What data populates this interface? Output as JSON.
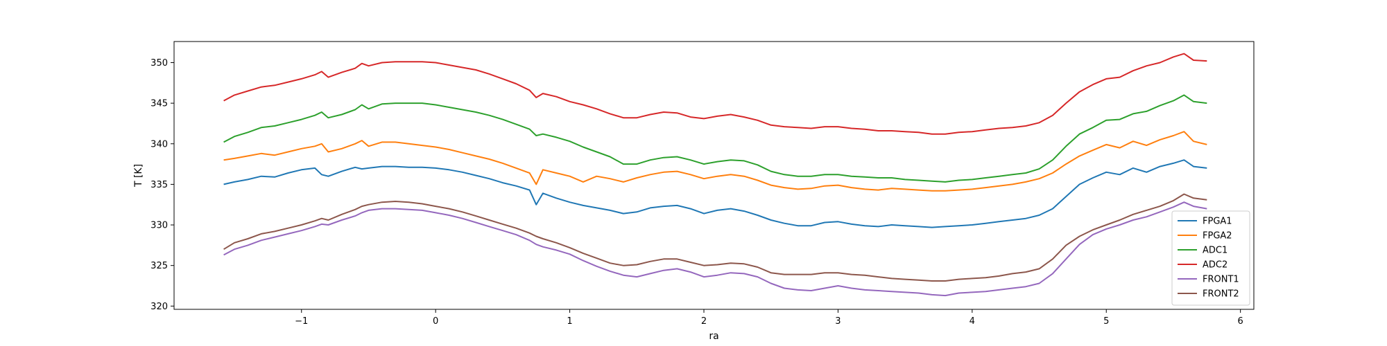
{
  "chart_data": {
    "type": "line",
    "xlabel": "ra",
    "ylabel": "T [K]",
    "xlim": [
      -1.95,
      6.1
    ],
    "ylim": [
      319.6,
      352.6
    ],
    "xticks": [
      -1,
      0,
      1,
      2,
      3,
      4,
      5,
      6
    ],
    "xtick_labels": [
      "−1",
      "0",
      "1",
      "2",
      "3",
      "4",
      "5",
      "6"
    ],
    "yticks": [
      320,
      325,
      330,
      335,
      340,
      345,
      350
    ],
    "ytick_labels": [
      "320",
      "325",
      "330",
      "335",
      "340",
      "345",
      "350"
    ],
    "grid": false,
    "legend_position": "lower-right",
    "x": [
      -1.58,
      -1.5,
      -1.4,
      -1.3,
      -1.2,
      -1.1,
      -1.0,
      -0.9,
      -0.85,
      -0.8,
      -0.7,
      -0.6,
      -0.55,
      -0.5,
      -0.4,
      -0.3,
      -0.2,
      -0.1,
      0.0,
      0.1,
      0.2,
      0.3,
      0.4,
      0.5,
      0.6,
      0.7,
      0.75,
      0.8,
      0.9,
      1.0,
      1.1,
      1.2,
      1.3,
      1.4,
      1.5,
      1.6,
      1.7,
      1.8,
      1.9,
      2.0,
      2.1,
      2.2,
      2.3,
      2.4,
      2.5,
      2.6,
      2.7,
      2.8,
      2.9,
      3.0,
      3.1,
      3.2,
      3.3,
      3.4,
      3.5,
      3.6,
      3.7,
      3.8,
      3.9,
      4.0,
      4.1,
      4.2,
      4.3,
      4.4,
      4.5,
      4.6,
      4.7,
      4.8,
      4.9,
      5.0,
      5.1,
      5.2,
      5.3,
      5.4,
      5.5,
      5.58,
      5.65,
      5.75
    ],
    "series": [
      {
        "name": "FPGA1",
        "color": "#1f77b4",
        "values": [
          335.0,
          335.3,
          335.6,
          336.0,
          335.9,
          336.4,
          336.8,
          337.0,
          336.2,
          336.0,
          336.6,
          337.1,
          336.9,
          337.0,
          337.2,
          337.2,
          337.1,
          337.1,
          337.0,
          336.8,
          336.5,
          336.1,
          335.7,
          335.2,
          334.8,
          334.3,
          332.5,
          333.9,
          333.3,
          332.8,
          332.4,
          332.1,
          331.8,
          331.4,
          331.6,
          332.1,
          332.3,
          332.4,
          332.0,
          331.4,
          331.8,
          332.0,
          331.7,
          331.2,
          330.6,
          330.2,
          329.9,
          329.9,
          330.3,
          330.4,
          330.1,
          329.9,
          329.8,
          330.0,
          329.9,
          329.8,
          329.7,
          329.8,
          329.9,
          330.0,
          330.2,
          330.4,
          330.6,
          330.8,
          331.2,
          332.0,
          333.5,
          335.0,
          335.8,
          336.5,
          336.2,
          337.0,
          336.5,
          337.2,
          337.6,
          338.0,
          337.2,
          337.0
        ]
      },
      {
        "name": "FPGA2",
        "color": "#ff7f0e",
        "values": [
          338.0,
          338.2,
          338.5,
          338.8,
          338.6,
          339.0,
          339.4,
          339.7,
          340.0,
          339.0,
          339.4,
          340.0,
          340.4,
          339.7,
          340.2,
          340.2,
          340.0,
          339.8,
          339.6,
          339.3,
          338.9,
          338.5,
          338.1,
          337.6,
          337.0,
          336.4,
          335.0,
          336.8,
          336.4,
          336.0,
          335.3,
          336.0,
          335.7,
          335.3,
          335.8,
          336.2,
          336.5,
          336.6,
          336.2,
          335.7,
          336.0,
          336.2,
          336.0,
          335.5,
          334.9,
          334.6,
          334.4,
          334.5,
          334.8,
          334.9,
          334.6,
          334.4,
          334.3,
          334.5,
          334.4,
          334.3,
          334.2,
          334.2,
          334.3,
          334.4,
          334.6,
          334.8,
          335.0,
          335.3,
          335.7,
          336.4,
          337.5,
          338.5,
          339.2,
          339.9,
          339.5,
          340.3,
          339.8,
          340.5,
          341.0,
          341.5,
          340.3,
          339.9
        ]
      },
      {
        "name": "ADC1",
        "color": "#2ca02c",
        "values": [
          340.2,
          340.9,
          341.4,
          342.0,
          342.2,
          342.6,
          343.0,
          343.5,
          343.9,
          343.2,
          343.6,
          344.2,
          344.8,
          344.3,
          344.9,
          345.0,
          345.0,
          345.0,
          344.8,
          344.5,
          344.2,
          343.9,
          343.5,
          343.0,
          342.4,
          341.8,
          341.0,
          341.2,
          340.8,
          340.3,
          339.6,
          339.0,
          338.4,
          337.5,
          337.5,
          338.0,
          338.3,
          338.4,
          338.0,
          337.5,
          337.8,
          338.0,
          337.9,
          337.4,
          336.6,
          336.2,
          336.0,
          336.0,
          336.2,
          336.2,
          336.0,
          335.9,
          335.8,
          335.8,
          335.6,
          335.5,
          335.4,
          335.3,
          335.5,
          335.6,
          335.8,
          336.0,
          336.2,
          336.4,
          336.9,
          338.0,
          339.7,
          341.2,
          342.0,
          342.9,
          343.0,
          343.7,
          344.0,
          344.7,
          345.3,
          346.0,
          345.2,
          345.0
        ]
      },
      {
        "name": "ADC2",
        "color": "#d62728",
        "values": [
          345.3,
          346.0,
          346.5,
          347.0,
          347.2,
          347.6,
          348.0,
          348.5,
          348.9,
          348.2,
          348.8,
          349.3,
          349.9,
          349.6,
          350.0,
          350.1,
          350.1,
          350.1,
          350.0,
          349.7,
          349.4,
          349.1,
          348.6,
          348.0,
          347.4,
          346.6,
          345.7,
          346.2,
          345.8,
          345.2,
          344.8,
          344.3,
          343.7,
          343.2,
          343.2,
          343.6,
          343.9,
          343.8,
          343.3,
          343.1,
          343.4,
          343.6,
          343.3,
          342.9,
          342.3,
          342.1,
          342.0,
          341.9,
          342.1,
          342.1,
          341.9,
          341.8,
          341.6,
          341.6,
          341.5,
          341.4,
          341.2,
          341.2,
          341.4,
          341.5,
          341.7,
          341.9,
          342.0,
          342.2,
          342.6,
          343.5,
          345.0,
          346.4,
          347.3,
          348.0,
          348.2,
          349.0,
          349.6,
          350.0,
          350.7,
          351.1,
          350.3,
          350.2
        ]
      },
      {
        "name": "FRONT1",
        "color": "#9467bd",
        "values": [
          326.3,
          327.0,
          327.5,
          328.1,
          328.5,
          328.9,
          329.3,
          329.8,
          330.1,
          330.0,
          330.6,
          331.1,
          331.5,
          331.8,
          332.0,
          332.0,
          331.9,
          331.8,
          331.5,
          331.2,
          330.8,
          330.3,
          329.8,
          329.3,
          328.8,
          328.1,
          327.6,
          327.3,
          326.9,
          326.4,
          325.6,
          324.9,
          324.3,
          323.8,
          323.6,
          324.0,
          324.4,
          324.6,
          324.2,
          323.6,
          323.8,
          324.1,
          324.0,
          323.6,
          322.8,
          322.2,
          322.0,
          321.9,
          322.2,
          322.5,
          322.2,
          322.0,
          321.9,
          321.8,
          321.7,
          321.6,
          321.4,
          321.3,
          321.6,
          321.7,
          321.8,
          322.0,
          322.2,
          322.4,
          322.8,
          324.0,
          325.8,
          327.6,
          328.8,
          329.5,
          330.0,
          330.6,
          331.0,
          331.6,
          332.2,
          332.8,
          332.3,
          332.0
        ]
      },
      {
        "name": "FRONT2",
        "color": "#8c564b",
        "values": [
          327.0,
          327.8,
          328.3,
          328.9,
          329.2,
          329.6,
          330.0,
          330.5,
          330.8,
          330.6,
          331.3,
          331.9,
          332.3,
          332.5,
          332.8,
          332.9,
          332.8,
          332.6,
          332.3,
          332.0,
          331.6,
          331.1,
          330.6,
          330.1,
          329.6,
          329.0,
          328.6,
          328.3,
          327.8,
          327.2,
          326.5,
          325.9,
          325.3,
          325.0,
          325.1,
          325.5,
          325.8,
          325.8,
          325.4,
          325.0,
          325.1,
          325.3,
          325.2,
          324.8,
          324.1,
          323.9,
          323.9,
          323.9,
          324.1,
          324.1,
          323.9,
          323.8,
          323.6,
          323.4,
          323.3,
          323.2,
          323.1,
          323.1,
          323.3,
          323.4,
          323.5,
          323.7,
          324.0,
          324.2,
          324.6,
          325.8,
          327.5,
          328.6,
          329.4,
          330.0,
          330.6,
          331.3,
          331.8,
          332.3,
          333.0,
          333.8,
          333.3,
          333.1
        ]
      }
    ]
  }
}
